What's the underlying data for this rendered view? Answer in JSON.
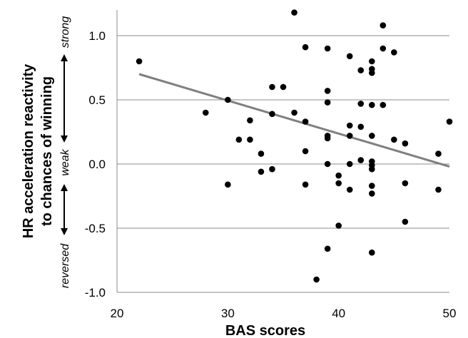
{
  "chart_data": {
    "type": "scatter",
    "xlabel": "BAS scores",
    "ylabel_lines": [
      "HR acceleration reactivity",
      "to chances of winning"
    ],
    "xlim": [
      20,
      50
    ],
    "ylim": [
      -1.0,
      1.2
    ],
    "x_ticks": [
      20,
      30,
      40,
      50
    ],
    "x_tick_labels": [
      "20",
      "30",
      "40",
      "50"
    ],
    "y_ticks": [
      1.0,
      0.5,
      0.0,
      -0.5,
      -1.0
    ],
    "y_tick_labels": [
      "1.0",
      "0.5",
      "0.0",
      "-0.5",
      "-1.0"
    ],
    "grid": "horizontal",
    "side_labels": {
      "strong": "strong",
      "weak": "weak",
      "reversed": "reversed"
    },
    "trendline": {
      "x": [
        22,
        50
      ],
      "y": [
        0.7,
        -0.02
      ]
    },
    "points": [
      {
        "x": 22,
        "y": 0.8
      },
      {
        "x": 28,
        "y": 0.4
      },
      {
        "x": 30,
        "y": 0.5
      },
      {
        "x": 30,
        "y": -0.16
      },
      {
        "x": 31,
        "y": 0.19
      },
      {
        "x": 32,
        "y": 0.34
      },
      {
        "x": 32,
        "y": 0.19
      },
      {
        "x": 33,
        "y": 0.08
      },
      {
        "x": 33,
        "y": -0.06
      },
      {
        "x": 34,
        "y": 0.6
      },
      {
        "x": 34,
        "y": 0.39
      },
      {
        "x": 34,
        "y": -0.04
      },
      {
        "x": 35,
        "y": 0.6
      },
      {
        "x": 36,
        "y": 1.18
      },
      {
        "x": 36,
        "y": 0.4
      },
      {
        "x": 37,
        "y": 0.91
      },
      {
        "x": 37,
        "y": 0.33
      },
      {
        "x": 37,
        "y": 0.1
      },
      {
        "x": 37,
        "y": -0.16
      },
      {
        "x": 38,
        "y": -0.9
      },
      {
        "x": 39,
        "y": 0.9
      },
      {
        "x": 39,
        "y": 0.57
      },
      {
        "x": 39,
        "y": 0.48
      },
      {
        "x": 39,
        "y": 0.22
      },
      {
        "x": 39,
        "y": 0.2
      },
      {
        "x": 39,
        "y": 0.0
      },
      {
        "x": 39,
        "y": -0.66
      },
      {
        "x": 40,
        "y": -0.09
      },
      {
        "x": 40,
        "y": -0.15
      },
      {
        "x": 40,
        "y": -0.48
      },
      {
        "x": 41,
        "y": 0.84
      },
      {
        "x": 41,
        "y": 0.3
      },
      {
        "x": 41,
        "y": 0.22
      },
      {
        "x": 41,
        "y": 0.0
      },
      {
        "x": 41,
        "y": -0.2
      },
      {
        "x": 42,
        "y": 0.73
      },
      {
        "x": 42,
        "y": 0.47
      },
      {
        "x": 42,
        "y": 0.29
      },
      {
        "x": 42,
        "y": 0.03
      },
      {
        "x": 43,
        "y": 0.8
      },
      {
        "x": 43,
        "y": 0.74
      },
      {
        "x": 43,
        "y": 0.71
      },
      {
        "x": 43,
        "y": 0.46
      },
      {
        "x": 43,
        "y": 0.22
      },
      {
        "x": 43,
        "y": 0.02
      },
      {
        "x": 43,
        "y": -0.01
      },
      {
        "x": 43,
        "y": -0.04
      },
      {
        "x": 43,
        "y": -0.17
      },
      {
        "x": 43,
        "y": -0.23
      },
      {
        "x": 43,
        "y": -0.69
      },
      {
        "x": 44,
        "y": 1.08
      },
      {
        "x": 44,
        "y": 0.9
      },
      {
        "x": 44,
        "y": 0.46
      },
      {
        "x": 45,
        "y": 0.87
      },
      {
        "x": 45,
        "y": 0.19
      },
      {
        "x": 46,
        "y": 0.16
      },
      {
        "x": 46,
        "y": -0.15
      },
      {
        "x": 46,
        "y": -0.45
      },
      {
        "x": 49,
        "y": 0.08
      },
      {
        "x": 49,
        "y": -0.2
      },
      {
        "x": 50,
        "y": 0.33
      }
    ]
  }
}
